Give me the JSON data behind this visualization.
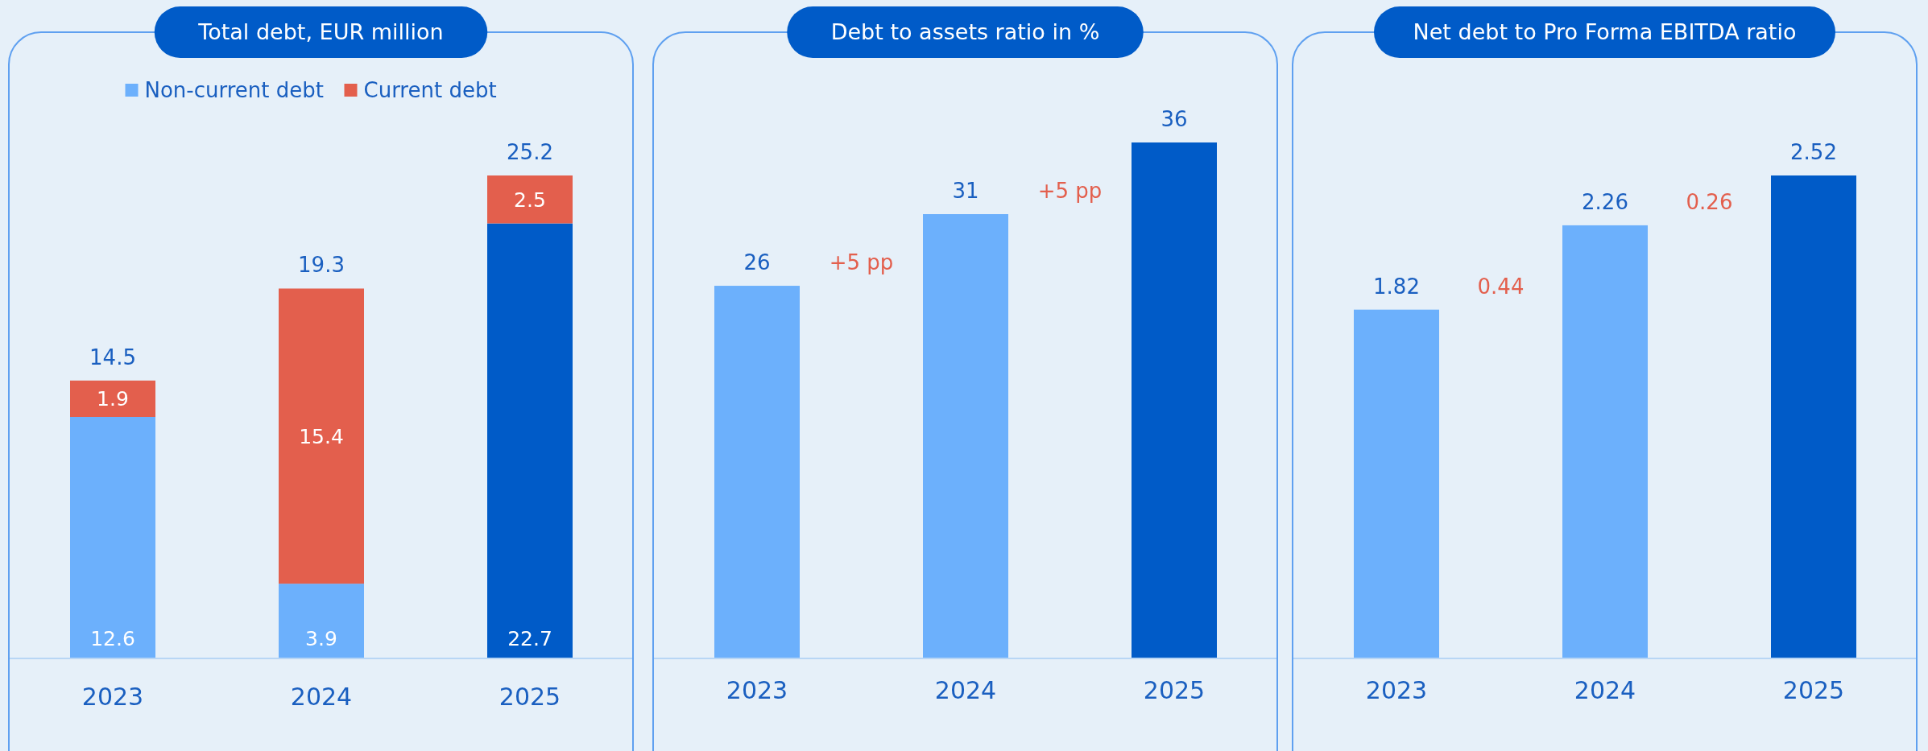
{
  "chart_data": [
    {
      "type": "bar",
      "title": "Total debt, EUR million",
      "categories": [
        "2023",
        "2024",
        "2025"
      ],
      "stacked": true,
      "legend": "top",
      "data_labels": true,
      "series": [
        {
          "name": "Non-current debt",
          "color": "#6cb0fc",
          "colors": [
            "#6cb0fc",
            "#6cb0fc",
            "#005bc8"
          ],
          "values": [
            12.6,
            3.9,
            22.7
          ]
        },
        {
          "name": "Current debt",
          "color": "#e35f4d",
          "values": [
            1.9,
            15.4,
            2.5
          ]
        }
      ],
      "totals": [
        "14.5",
        "19.3",
        "25.2"
      ]
    },
    {
      "type": "bar",
      "title": "Debt to assets ratio in %",
      "categories": [
        "2023",
        "2024",
        "2025"
      ],
      "data_labels": true,
      "values": [
        26,
        31,
        36
      ],
      "colors": [
        "#6cb0fc",
        "#6cb0fc",
        "#005bc8"
      ],
      "annotations": [
        "+5 pp",
        "+5 pp"
      ]
    },
    {
      "type": "bar",
      "title": "Net debt to Pro Forma EBITDA ratio",
      "categories": [
        "2023",
        "2024",
        "2025"
      ],
      "data_labels": true,
      "values": [
        1.82,
        2.26,
        2.52
      ],
      "colors": [
        "#6cb0fc",
        "#6cb0fc",
        "#005bc8"
      ],
      "annotations": [
        "0.44",
        "0.26"
      ]
    }
  ]
}
